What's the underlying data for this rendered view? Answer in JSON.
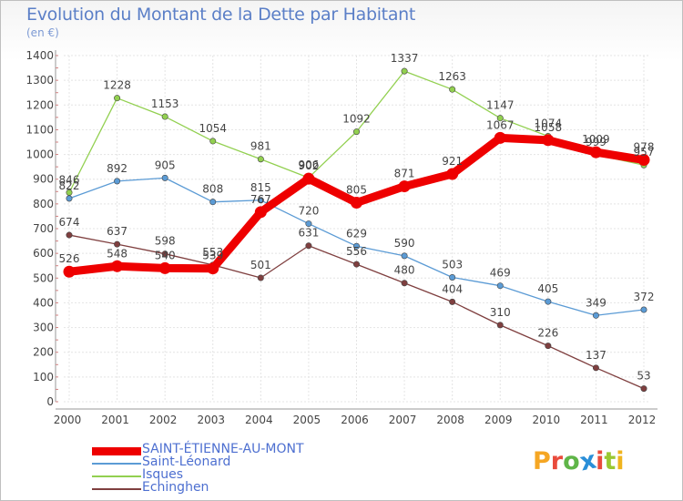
{
  "title": "Evolution du Montant de la Dette par Habitant",
  "subtitle": "(en €)",
  "brand": {
    "text": "Proxiti",
    "colors": [
      "#f5a623",
      "#e94b3c",
      "#5fb548",
      "#2a8ed8",
      "#e94b3c",
      "#9ac832",
      "#f0b41e"
    ]
  },
  "chart_data": {
    "type": "line",
    "title": "Evolution du Montant de la Dette par Habitant",
    "subtitle": "(en €)",
    "xlabel": "",
    "ylabel": "",
    "x": [
      "2000",
      "2001",
      "2002",
      "2003",
      "2004",
      "2005",
      "2006",
      "2007",
      "2008",
      "2009",
      "2010",
      "2011",
      "2012"
    ],
    "ylim": [
      0,
      1400
    ],
    "yticks": [
      "0",
      "100",
      "200",
      "300",
      "400",
      "500",
      "600",
      "700",
      "800",
      "900",
      "1000",
      "1100",
      "1200",
      "1300",
      "1400"
    ],
    "grid": true,
    "legend_position": "bottom-left",
    "series": [
      {
        "name": "SAINT-ÉTIENNE-AU-MONT",
        "color": "#ee0000",
        "emphasis": true,
        "values": [
          526,
          548,
          540,
          539,
          767,
          902,
          805,
          871,
          921,
          1067,
          1058,
          1009,
          978
        ],
        "labels": [
          "526",
          "548",
          "540",
          "539",
          "767",
          "902",
          "805",
          "871",
          "921",
          "1067",
          "1058",
          "1009",
          "978"
        ]
      },
      {
        "name": "Saint-Léonard",
        "color": "#5b9bd5",
        "values": [
          822,
          892,
          905,
          808,
          815,
          720,
          629,
          590,
          503,
          469,
          405,
          349,
          372
        ],
        "labels": [
          "822",
          "892",
          "905",
          "808",
          "815",
          "720",
          "629",
          "590",
          "503",
          "469",
          "405",
          "349",
          "372"
        ]
      },
      {
        "name": "Isques",
        "color": "#92d050",
        "values": [
          846,
          1228,
          1153,
          1054,
          981,
          906,
          1092,
          1337,
          1263,
          1147,
          1074,
          999,
          957
        ],
        "labels": [
          "846",
          "1228",
          "1153",
          "1054",
          "981",
          "906",
          "1092",
          "1337",
          "1263",
          "1147",
          "1074",
          "999",
          "957"
        ]
      },
      {
        "name": "Echinghen",
        "color": "#7f3f3f",
        "values": [
          674,
          637,
          598,
          553,
          501,
          631,
          556,
          480,
          404,
          310,
          226,
          137,
          53
        ],
        "labels": [
          "674",
          "637",
          "598",
          "553",
          "501",
          "631",
          "556",
          "480",
          "404",
          "310",
          "226",
          "137",
          "53"
        ]
      }
    ]
  }
}
